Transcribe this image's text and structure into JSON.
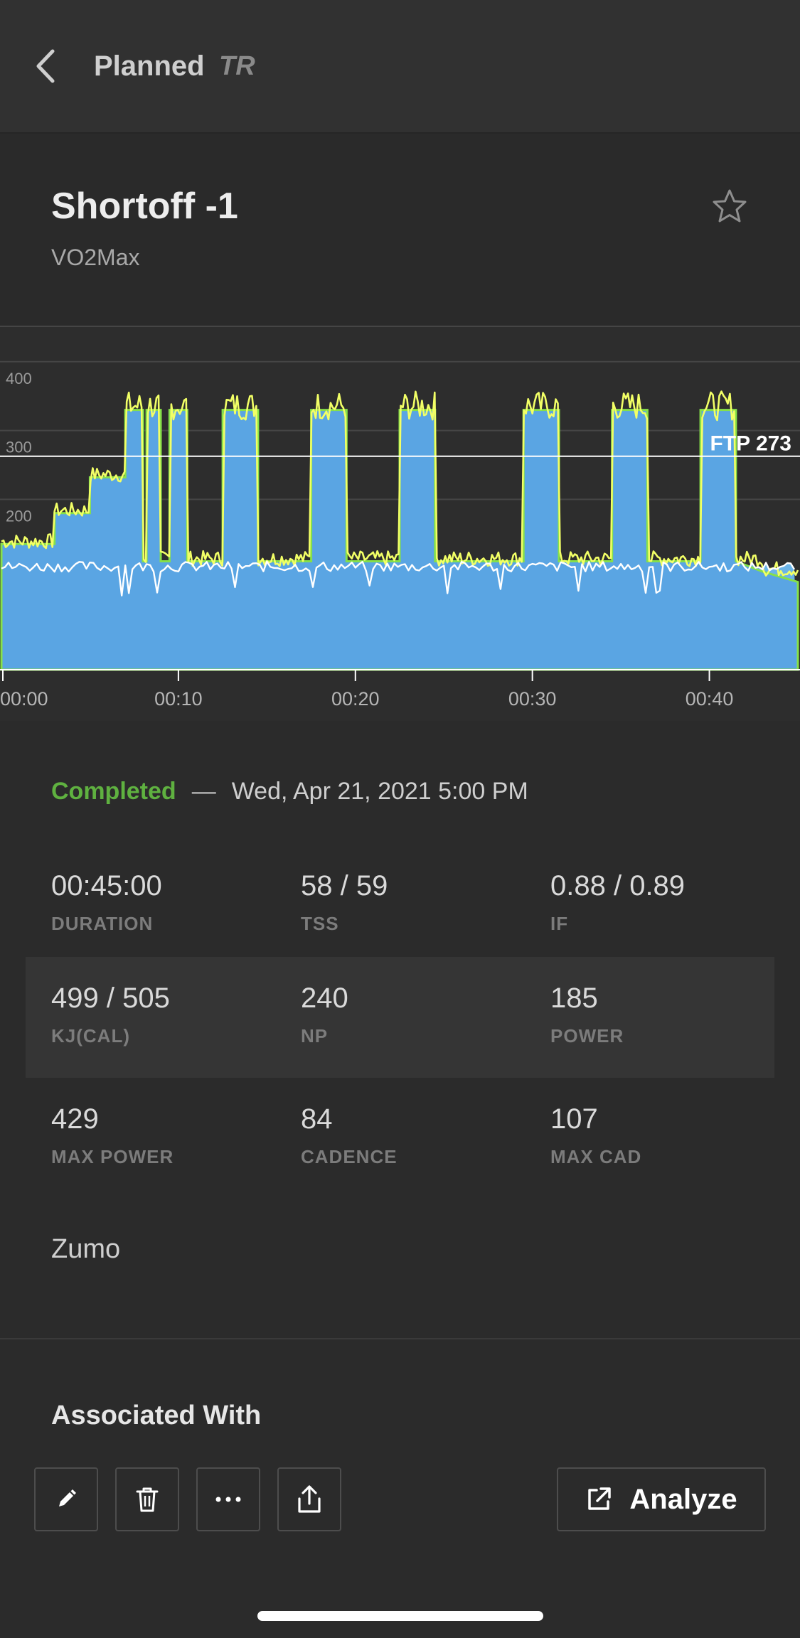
{
  "header": {
    "title": "Planned",
    "brand": "TR"
  },
  "workout": {
    "title": "Shortoff -1",
    "type": "VO2Max"
  },
  "chart_data": {
    "type": "area",
    "ylim": [
      0,
      500
    ],
    "yticks": [
      "500",
      "400",
      "300",
      "200"
    ],
    "xticks": [
      "00:00",
      "00:10",
      "00:20",
      "00:30",
      "00:40"
    ],
    "ftp_label": "FTP 273",
    "ftp_value": 273,
    "x_unit": "minutes",
    "xlim": [
      0,
      45
    ],
    "series": [
      {
        "kind": "target-power-area",
        "color": "#5aa5e3",
        "points": [
          [
            0,
            135
          ],
          [
            3,
            135
          ],
          [
            3,
            180
          ],
          [
            5,
            180
          ],
          [
            5,
            232
          ],
          [
            7,
            232
          ],
          [
            7,
            330
          ],
          [
            8,
            330
          ],
          [
            8,
            110
          ],
          [
            8.2,
            110
          ],
          [
            8.2,
            330
          ],
          [
            9,
            330
          ],
          [
            9,
            110
          ],
          [
            9.5,
            110
          ],
          [
            9.5,
            330
          ],
          [
            10.5,
            330
          ],
          [
            10.5,
            110
          ],
          [
            12.5,
            110
          ],
          [
            12.5,
            330
          ],
          [
            14.5,
            330
          ],
          [
            14.5,
            110
          ],
          [
            17.5,
            110
          ],
          [
            17.5,
            330
          ],
          [
            19.5,
            330
          ],
          [
            19.5,
            110
          ],
          [
            22.5,
            110
          ],
          [
            22.5,
            330
          ],
          [
            24.5,
            330
          ],
          [
            24.5,
            110
          ],
          [
            29.5,
            110
          ],
          [
            29.5,
            330
          ],
          [
            31.5,
            330
          ],
          [
            31.5,
            110
          ],
          [
            34.5,
            110
          ],
          [
            34.5,
            330
          ],
          [
            36.5,
            330
          ],
          [
            36.5,
            110
          ],
          [
            39.5,
            110
          ],
          [
            39.5,
            330
          ],
          [
            41.5,
            330
          ],
          [
            41.5,
            110
          ],
          [
            43,
            95
          ],
          [
            45,
            80
          ]
        ]
      },
      {
        "kind": "actual-power",
        "color": "#f2ff66"
      },
      {
        "kind": "cadence",
        "color": "#ffffff",
        "avg": 84
      }
    ]
  },
  "summary": {
    "status": "Completed",
    "dash": "—",
    "date": "Wed, Apr 21, 2021 5:00 PM"
  },
  "stats": [
    [
      {
        "value": "00:45:00",
        "label": "DURATION"
      },
      {
        "value": "58 / 59",
        "label": "TSS"
      },
      {
        "value": "0.88 / 0.89",
        "label": "IF"
      }
    ],
    [
      {
        "value": "499 / 505",
        "label": "KJ(CAL)"
      },
      {
        "value": "240",
        "label": "NP"
      },
      {
        "value": "185",
        "label": "POWER"
      }
    ],
    [
      {
        "value": "429",
        "label": "MAX POWER"
      },
      {
        "value": "84",
        "label": "CADENCE"
      },
      {
        "value": "107",
        "label": "MAX CAD"
      }
    ]
  ],
  "device": "Zumo",
  "associated": {
    "title": "Associated With"
  },
  "actions": {
    "tools": [
      "pencil-icon",
      "trash-icon",
      "more-icon",
      "share-icon"
    ],
    "analyze_label": "Analyze"
  },
  "colors": {
    "accent_green": "#5fb140",
    "target_blue": "#5aa5e3",
    "power_yellow": "#f2ff66"
  }
}
